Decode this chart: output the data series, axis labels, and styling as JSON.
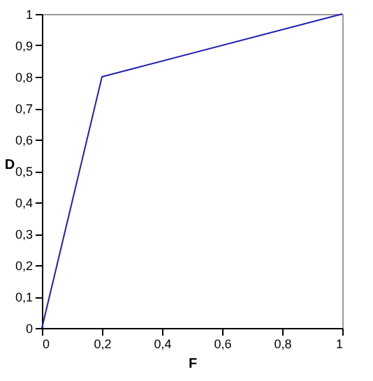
{
  "chart_data": {
    "type": "line",
    "xlabel": "F",
    "ylabel": "D",
    "x": [
      0,
      0.2,
      1
    ],
    "series": [
      {
        "color": "#1f1fb4",
        "values": [
          0,
          0.8,
          1
        ]
      }
    ],
    "xlim": [
      0,
      1
    ],
    "ylim": [
      0,
      1
    ],
    "xticks": [
      0,
      {
        "value": 0.2,
        "label": "0,2"
      },
      {
        "value": 0.4,
        "label": "0,4"
      },
      {
        "value": 0.6,
        "label": "0,6"
      },
      {
        "value": 0.8,
        "label": "0,8"
      },
      1
    ],
    "yticks": [
      0,
      {
        "value": 0.1,
        "label": "0,1"
      },
      {
        "value": 0.2,
        "label": "0,2"
      },
      {
        "value": 0.3,
        "label": "0,3"
      },
      {
        "value": 0.4,
        "label": "0,4"
      },
      {
        "value": 0.5,
        "label": "0,5"
      },
      {
        "value": 0.6,
        "label": "0,6"
      },
      {
        "value": 0.7,
        "label": "0,7"
      },
      {
        "value": 0.8,
        "label": "0,8"
      },
      {
        "value": 0.9,
        "label": "0,9"
      },
      1
    ],
    "grid": false,
    "marker": "none",
    "line_style": "solid"
  }
}
